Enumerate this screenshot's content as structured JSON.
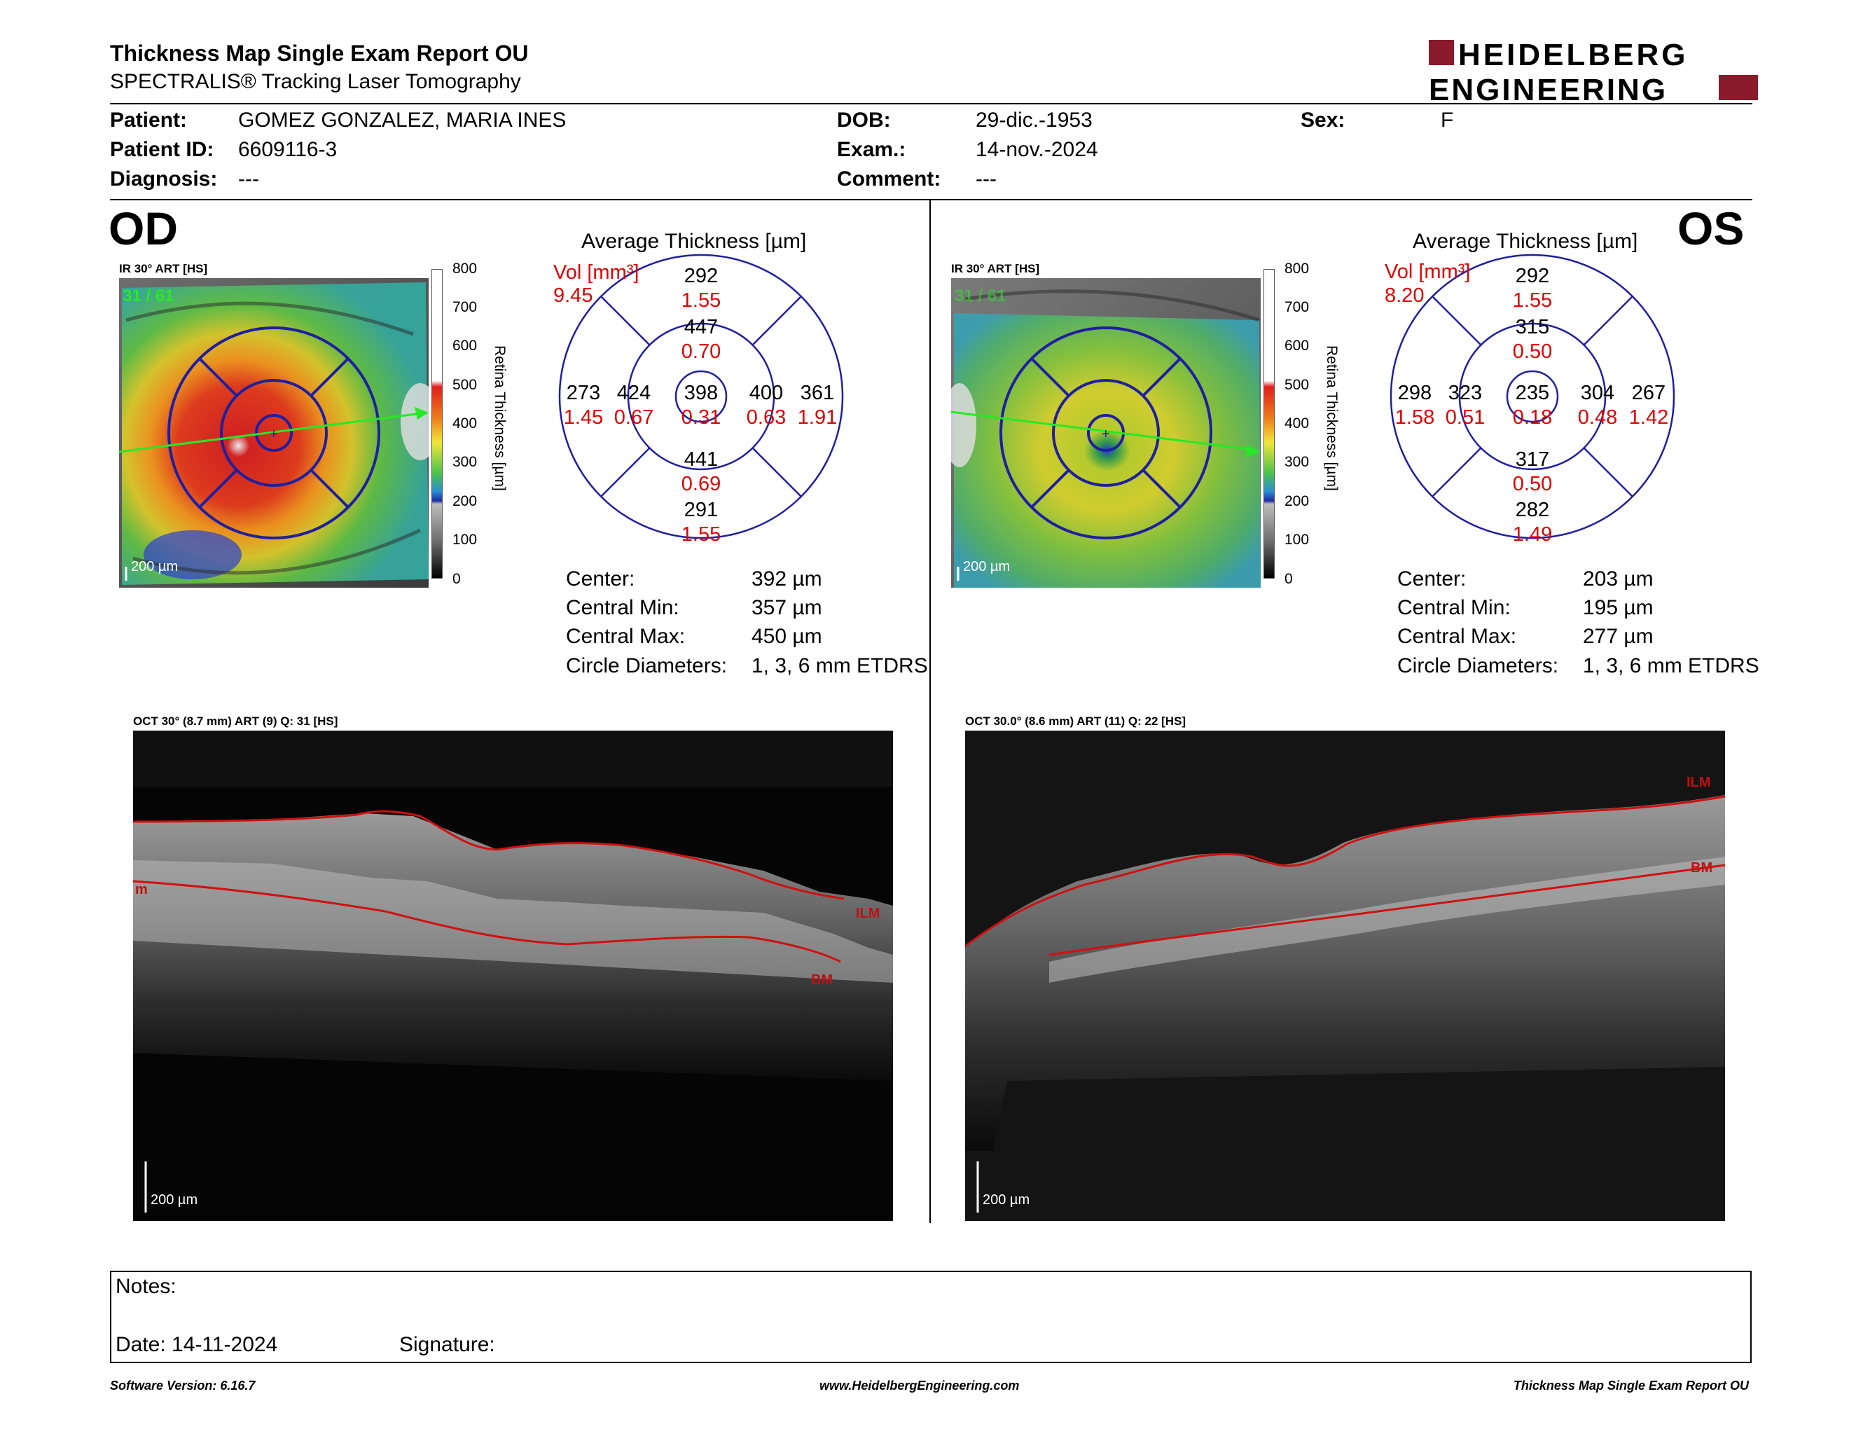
{
  "header": {
    "title": "Thickness Map Single Exam Report OU",
    "subtitle": "SPECTRALIS® Tracking Laser Tomography",
    "logo_line1": "HEIDELBERG",
    "logo_line2": "ENGINEERING"
  },
  "patient": {
    "patient_label": "Patient:",
    "patient_value": "GOMEZ GONZALEZ, MARIA INES",
    "id_label": "Patient ID:",
    "id_value": "6609116-3",
    "diagnosis_label": "Diagnosis:",
    "diagnosis_value": "---",
    "dob_label": "DOB:",
    "dob_value": "29-dic.-1953",
    "exam_label": "Exam.:",
    "exam_value": "14-nov.-2024",
    "comment_label": "Comment:",
    "comment_value": "---",
    "sex_label": "Sex:",
    "sex_value": "F"
  },
  "colors": {
    "accent": "#8b1a2b",
    "grid_blue": "#1f1fa0",
    "volume_red": "#e00000",
    "oct_line": "#d01010",
    "tracking_green": "#27e827"
  },
  "scale": {
    "ticks": [
      "800",
      "700",
      "600",
      "500",
      "400",
      "300",
      "200",
      "100",
      "0"
    ],
    "axis_label": "Retina Thickness [µm]"
  },
  "od": {
    "eye_label": "OD",
    "ir_label": "IR 30° ART [HS]",
    "frame_count": "31 / 61",
    "map_scale": "200 µm",
    "avg_title": "Average Thickness [µm]",
    "vol_label": "Vol [mm³]",
    "vol_total": "9.45",
    "grid": {
      "outer_sup": "292",
      "outer_sup_vol": "1.55",
      "inner_sup": "447",
      "inner_sup_vol": "0.70",
      "outer_temp": "273",
      "outer_temp_vol": "1.45",
      "inner_temp": "424",
      "inner_temp_vol": "0.67",
      "center": "398",
      "center_vol": "0.31",
      "inner_nas": "400",
      "inner_nas_vol": "0.63",
      "outer_nas": "361",
      "outer_nas_vol": "1.91",
      "inner_inf": "441",
      "inner_inf_vol": "0.69",
      "outer_inf": "291",
      "outer_inf_vol": "1.55"
    },
    "stats": {
      "center_label": "Center:",
      "center_value": "392 µm",
      "min_label": "Central Min:",
      "min_value": "357 µm",
      "max_label": "Central Max:",
      "max_value": "450 µm",
      "diam_label": "Circle Diameters:",
      "diam_value": "1, 3, 6 mm ETDRS"
    },
    "oct_label": "OCT 30° (8.7 mm) ART (9) Q: 31 [HS]",
    "oct_scale": "200 µm",
    "oct_tags": {
      "left": "m",
      "ilm": "ILM",
      "bm": "BM"
    }
  },
  "os": {
    "eye_label": "OS",
    "ir_label": "IR 30° ART [HS]",
    "frame_count": "31 / 61",
    "map_scale": "200 µm",
    "avg_title": "Average Thickness [µm]",
    "vol_label": "Vol [mm³]",
    "vol_total": "8.20",
    "grid": {
      "outer_sup": "292",
      "outer_sup_vol": "1.55",
      "inner_sup": "315",
      "inner_sup_vol": "0.50",
      "outer_temp": "298",
      "outer_temp_vol": "1.58",
      "inner_temp": "323",
      "inner_temp_vol": "0.51",
      "center": "235",
      "center_vol": "0.18",
      "inner_nas": "304",
      "inner_nas_vol": "0.48",
      "outer_nas": "267",
      "outer_nas_vol": "1.42",
      "inner_inf": "317",
      "inner_inf_vol": "0.50",
      "outer_inf": "282",
      "outer_inf_vol": "1.49"
    },
    "stats": {
      "center_label": "Center:",
      "center_value": "203 µm",
      "min_label": "Central Min:",
      "min_value": "195 µm",
      "max_label": "Central Max:",
      "max_value": "277 µm",
      "diam_label": "Circle Diameters:",
      "diam_value": "1, 3, 6 mm ETDRS"
    },
    "oct_label": "OCT 30.0° (8.6 mm) ART (11) Q: 22 [HS]",
    "oct_scale": "200 µm",
    "oct_tags": {
      "ilm": "ILM",
      "bm": "BM"
    }
  },
  "notes": {
    "notes_label": "Notes:",
    "date_label": "Date: 14-11-2024",
    "signature_label": "Signature:"
  },
  "footer": {
    "software": "Software Version: 6.16.7",
    "website": "www.HeidelbergEngineering.com",
    "report": "Thickness Map Single Exam Report OU"
  }
}
